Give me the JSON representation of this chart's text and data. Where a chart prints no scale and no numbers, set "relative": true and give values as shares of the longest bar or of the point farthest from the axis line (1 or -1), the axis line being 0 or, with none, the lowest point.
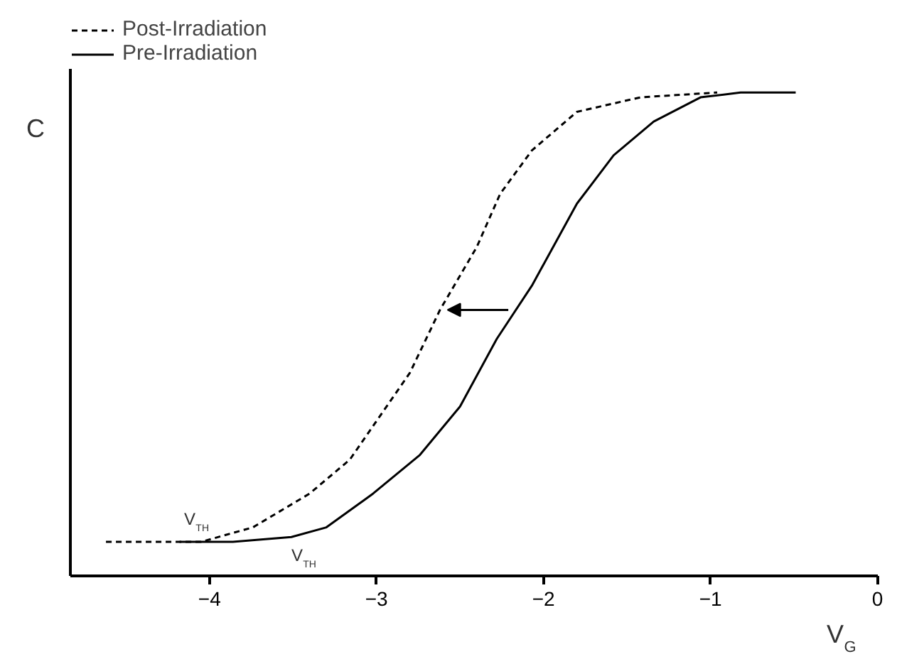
{
  "chart_data": {
    "type": "line",
    "relative": true,
    "xlabel": "V$_{G}$",
    "ylabel": "C",
    "xlim": [
      -4.83,
      0
    ],
    "xticks": [
      -4,
      -3,
      -2,
      -1,
      0
    ],
    "tick_labels": "x",
    "legend": "top left",
    "grid": false,
    "annotations": [
      {
        "text": "V$_{TH}$",
        "x": -4.05,
        "y": 0.07
      },
      {
        "text": "V$_{TH}$",
        "x": -3.51,
        "y": 0.08
      }
    ],
    "series": [
      {
        "name": "Post-Irradiation",
        "color": "#000000",
        "line_style": "dashed",
        "x": [
          -4.62,
          -4.05,
          -3.74,
          -3.4,
          -3.16,
          -2.98,
          -2.8,
          -2.62,
          -2.4,
          -2.26,
          -2.07,
          -1.8,
          -1.42,
          -0.96
        ],
        "values": [
          0.07,
          0.07,
          0.1,
          0.17,
          0.24,
          0.33,
          0.42,
          0.55,
          0.68,
          0.79,
          0.88,
          0.96,
          0.99,
          1.0
        ]
      },
      {
        "name": "Pre-Irradiation",
        "color": "#000000",
        "line_style": "solid",
        "x": [
          -4.18,
          -3.86,
          -3.51,
          -3.3,
          -3.02,
          -2.74,
          -2.5,
          -2.28,
          -2.07,
          -1.8,
          -1.58,
          -1.34,
          -1.06,
          -0.82,
          -0.49
        ],
        "values": [
          0.07,
          0.07,
          0.08,
          0.1,
          0.17,
          0.25,
          0.35,
          0.49,
          0.6,
          0.77,
          0.87,
          0.94,
          0.99,
          1.0,
          1.0
        ]
      }
    ]
  }
}
